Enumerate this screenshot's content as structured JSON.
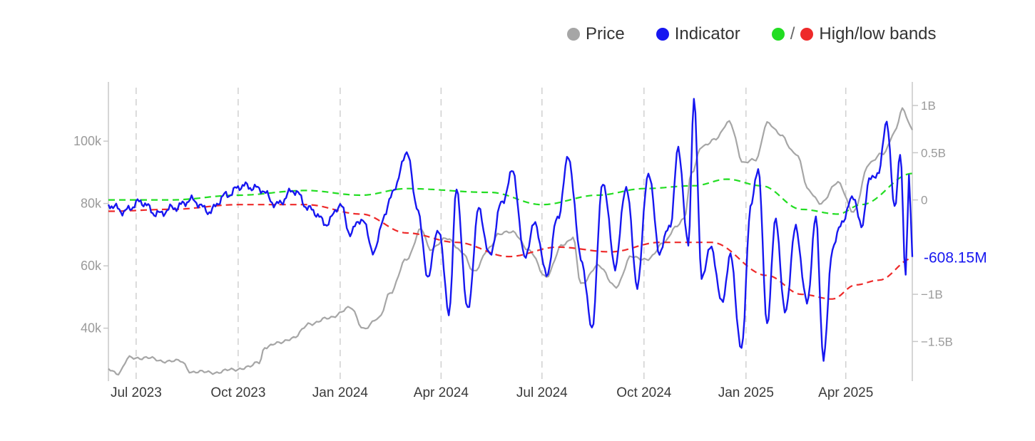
{
  "legend": {
    "price": "Price",
    "indicator": "Indicator",
    "bands": "High/low bands",
    "slash": "/"
  },
  "colors": {
    "price": "#a6a6a6",
    "indicator": "#1717f0",
    "band_high": "#22dd22",
    "band_low": "#ee2a2a",
    "axis_text": "#9a9a9a",
    "grid": "#d0d0d0",
    "last_value": "#1717f0"
  },
  "last_value_label": "-608.15M",
  "chart_data": {
    "type": "line",
    "x_axis": {
      "ticks": [
        "Jul 2023",
        "Oct 2023",
        "Jan 2024",
        "Apr 2024",
        "Jul 2024",
        "Oct 2024",
        "Jan 2025",
        "Apr 2025"
      ],
      "tick_dates": [
        "2023-07-01",
        "2023-10-01",
        "2024-01-01",
        "2024-04-01",
        "2024-07-01",
        "2024-10-01",
        "2025-01-01",
        "2025-04-01"
      ],
      "range": [
        "2023-06-06",
        "2025-05-31"
      ],
      "grid": "dashed vertical"
    },
    "y_left": {
      "ticks": [
        "40k",
        "60k",
        "80k",
        "100k"
      ],
      "tick_values": [
        40000,
        60000,
        80000,
        100000
      ],
      "range": [
        23000,
        119000
      ]
    },
    "y_right": {
      "ticks": [
        "1B",
        "0.5B",
        "0",
        "−1B",
        "−1.5B"
      ],
      "tick_values": [
        1000000000,
        500000000,
        0,
        -1000000000,
        -1500000000
      ],
      "range": [
        -1920000000,
        1250000000
      ]
    },
    "legend_position": "top-right",
    "series": [
      {
        "name": "Price",
        "axis": "left",
        "style": "solid",
        "points": [
          [
            "2023-06-06",
            27000
          ],
          [
            "2023-06-15",
            25500
          ],
          [
            "2023-06-25",
            30500
          ],
          [
            "2023-07-10",
            30500
          ],
          [
            "2023-07-25",
            29500
          ],
          [
            "2023-08-10",
            29400
          ],
          [
            "2023-08-20",
            26000
          ],
          [
            "2023-09-10",
            25800
          ],
          [
            "2023-09-25",
            26600
          ],
          [
            "2023-10-10",
            27500
          ],
          [
            "2023-10-20",
            29000
          ],
          [
            "2023-10-25",
            34000
          ],
          [
            "2023-11-05",
            35000
          ],
          [
            "2023-11-20",
            37000
          ],
          [
            "2023-12-05",
            41500
          ],
          [
            "2023-12-20",
            43000
          ],
          [
            "2024-01-10",
            46500
          ],
          [
            "2024-01-22",
            40000
          ],
          [
            "2024-02-05",
            43000
          ],
          [
            "2024-02-15",
            51500
          ],
          [
            "2024-03-01",
            62000
          ],
          [
            "2024-03-14",
            72000
          ],
          [
            "2024-03-22",
            65000
          ],
          [
            "2024-04-05",
            69000
          ],
          [
            "2024-04-20",
            64500
          ],
          [
            "2024-05-01",
            58000
          ],
          [
            "2024-05-15",
            66000
          ],
          [
            "2024-05-22",
            70000
          ],
          [
            "2024-06-05",
            71000
          ],
          [
            "2024-06-20",
            64500
          ],
          [
            "2024-07-05",
            56500
          ],
          [
            "2024-07-20",
            67000
          ],
          [
            "2024-07-29",
            69000
          ],
          [
            "2024-08-05",
            54000
          ],
          [
            "2024-08-20",
            60000
          ],
          [
            "2024-09-06",
            53500
          ],
          [
            "2024-09-20",
            63000
          ],
          [
            "2024-10-05",
            62000
          ],
          [
            "2024-10-20",
            68000
          ],
          [
            "2024-10-29",
            72000
          ],
          [
            "2024-11-06",
            75000
          ],
          [
            "2024-11-13",
            90000
          ],
          [
            "2024-11-22",
            98000
          ],
          [
            "2024-12-05",
            101000
          ],
          [
            "2024-12-17",
            106000
          ],
          [
            "2024-12-30",
            93000
          ],
          [
            "2025-01-10",
            94000
          ],
          [
            "2025-01-20",
            106000
          ],
          [
            "2025-02-01",
            102000
          ],
          [
            "2025-02-15",
            96000
          ],
          [
            "2025-02-27",
            84000
          ],
          [
            "2025-03-10",
            80000
          ],
          [
            "2025-03-25",
            87000
          ],
          [
            "2025-04-08",
            77000
          ],
          [
            "2025-04-22",
            93000
          ],
          [
            "2025-05-05",
            96000
          ],
          [
            "2025-05-15",
            103000
          ],
          [
            "2025-05-22",
            110000
          ],
          [
            "2025-05-31",
            104000
          ]
        ]
      },
      {
        "name": "Indicator",
        "axis": "right",
        "style": "solid",
        "points": [
          [
            "2023-06-06",
            -50000000.0
          ],
          [
            "2023-06-20",
            -120000000.0
          ],
          [
            "2023-07-05",
            -20000000.0
          ],
          [
            "2023-07-20",
            -150000000.0
          ],
          [
            "2023-08-05",
            -80000000.0
          ],
          [
            "2023-08-20",
            0.0
          ],
          [
            "2023-09-05",
            -120000000.0
          ],
          [
            "2023-09-20",
            50000000.0
          ],
          [
            "2023-10-05",
            150000000.0
          ],
          [
            "2023-10-20",
            120000000.0
          ],
          [
            "2023-11-05",
            -50000000.0
          ],
          [
            "2023-11-20",
            100000000.0
          ],
          [
            "2023-12-05",
            -100000000.0
          ],
          [
            "2023-12-20",
            -250000000.0
          ],
          [
            "2024-01-01",
            -50000000.0
          ],
          [
            "2024-01-10",
            -350000000.0
          ],
          [
            "2024-01-20",
            -200000000.0
          ],
          [
            "2024-02-01",
            -550000000.0
          ],
          [
            "2024-02-10",
            -150000000.0
          ],
          [
            "2024-02-20",
            150000000.0
          ],
          [
            "2024-03-01",
            520000000.0
          ],
          [
            "2024-03-10",
            -50000000.0
          ],
          [
            "2024-03-20",
            -800000000.0
          ],
          [
            "2024-03-30",
            -300000000.0
          ],
          [
            "2024-04-08",
            -1200000000.0
          ],
          [
            "2024-04-15",
            100000000.0
          ],
          [
            "2024-04-25",
            -1180000000.0
          ],
          [
            "2024-05-05",
            -100000000.0
          ],
          [
            "2024-05-15",
            -600000000.0
          ],
          [
            "2024-05-25",
            -50000000.0
          ],
          [
            "2024-06-05",
            300000000.0
          ],
          [
            "2024-06-15",
            -600000000.0
          ],
          [
            "2024-06-25",
            -250000000.0
          ],
          [
            "2024-07-05",
            -800000000.0
          ],
          [
            "2024-07-15",
            -200000000.0
          ],
          [
            "2024-07-25",
            450000000.0
          ],
          [
            "2024-08-05",
            -600000000.0
          ],
          [
            "2024-08-15",
            -1350000000.0
          ],
          [
            "2024-08-25",
            200000000.0
          ],
          [
            "2024-09-05",
            -700000000.0
          ],
          [
            "2024-09-15",
            150000000.0
          ],
          [
            "2024-09-25",
            -900000000.0
          ],
          [
            "2024-10-05",
            300000000.0
          ],
          [
            "2024-10-15",
            -550000000.0
          ],
          [
            "2024-10-25",
            -250000000.0
          ],
          [
            "2024-11-01",
            550000000.0
          ],
          [
            "2024-11-10",
            -500000000.0
          ],
          [
            "2024-11-15",
            1080000000.0
          ],
          [
            "2024-11-22",
            -800000000.0
          ],
          [
            "2024-12-01",
            -500000000.0
          ],
          [
            "2024-12-10",
            -1100000000.0
          ],
          [
            "2024-12-18",
            -600000000.0
          ],
          [
            "2024-12-28",
            -1600000000.0
          ],
          [
            "2025-01-05",
            -100000000.0
          ],
          [
            "2025-01-12",
            350000000.0
          ],
          [
            "2025-01-20",
            -1300000000.0
          ],
          [
            "2025-01-28",
            -200000000.0
          ],
          [
            "2025-02-05",
            -1200000000.0
          ],
          [
            "2025-02-15",
            -300000000.0
          ],
          [
            "2025-02-25",
            -1100000000.0
          ],
          [
            "2025-03-05",
            -200000000.0
          ],
          [
            "2025-03-12",
            -1680000000.0
          ],
          [
            "2025-03-20",
            -500000000.0
          ],
          [
            "2025-03-30",
            -200000000.0
          ],
          [
            "2025-04-08",
            50000000.0
          ],
          [
            "2025-04-15",
            -300000000.0
          ],
          [
            "2025-04-22",
            200000000.0
          ],
          [
            "2025-05-01",
            300000000.0
          ],
          [
            "2025-05-08",
            850000000.0
          ],
          [
            "2025-05-15",
            -100000000.0
          ],
          [
            "2025-05-20",
            500000000.0
          ],
          [
            "2025-05-25",
            -800000000.0
          ],
          [
            "2025-05-28",
            300000000.0
          ],
          [
            "2025-05-31",
            -610000000.0
          ]
        ]
      },
      {
        "name": "High band",
        "axis": "right",
        "style": "dashed",
        "points": [
          [
            "2023-06-06",
            0.0
          ],
          [
            "2023-08-01",
            0.0
          ],
          [
            "2023-10-01",
            50000000.0
          ],
          [
            "2023-12-01",
            100000000.0
          ],
          [
            "2024-01-20",
            50000000.0
          ],
          [
            "2024-03-01",
            120000000.0
          ],
          [
            "2024-05-15",
            80000000.0
          ],
          [
            "2024-07-01",
            -50000000.0
          ],
          [
            "2024-08-20",
            50000000.0
          ],
          [
            "2024-10-01",
            120000000.0
          ],
          [
            "2024-11-15",
            150000000.0
          ],
          [
            "2024-12-15",
            220000000.0
          ],
          [
            "2025-01-15",
            150000000.0
          ],
          [
            "2025-02-20",
            -100000000.0
          ],
          [
            "2025-03-25",
            -150000000.0
          ],
          [
            "2025-04-15",
            -50000000.0
          ],
          [
            "2025-05-31",
            280000000.0
          ]
        ]
      },
      {
        "name": "Low band",
        "axis": "right",
        "style": "dashed",
        "points": [
          [
            "2023-06-06",
            -120000000.0
          ],
          [
            "2023-08-01",
            -100000000.0
          ],
          [
            "2023-10-01",
            -50000000.0
          ],
          [
            "2023-12-01",
            -50000000.0
          ],
          [
            "2024-01-20",
            -150000000.0
          ],
          [
            "2024-03-01",
            -350000000.0
          ],
          [
            "2024-04-15",
            -450000000.0
          ],
          [
            "2024-06-01",
            -600000000.0
          ],
          [
            "2024-07-15",
            -500000000.0
          ],
          [
            "2024-09-01",
            -550000000.0
          ],
          [
            "2024-10-15",
            -450000000.0
          ],
          [
            "2024-12-01",
            -450000000.0
          ],
          [
            "2025-01-20",
            -800000000.0
          ],
          [
            "2025-02-20",
            -1000000000.0
          ],
          [
            "2025-03-20",
            -1050000000.0
          ],
          [
            "2025-04-10",
            -900000000.0
          ],
          [
            "2025-05-01",
            -850000000.0
          ],
          [
            "2025-05-31",
            -620000000.0
          ]
        ]
      }
    ]
  }
}
